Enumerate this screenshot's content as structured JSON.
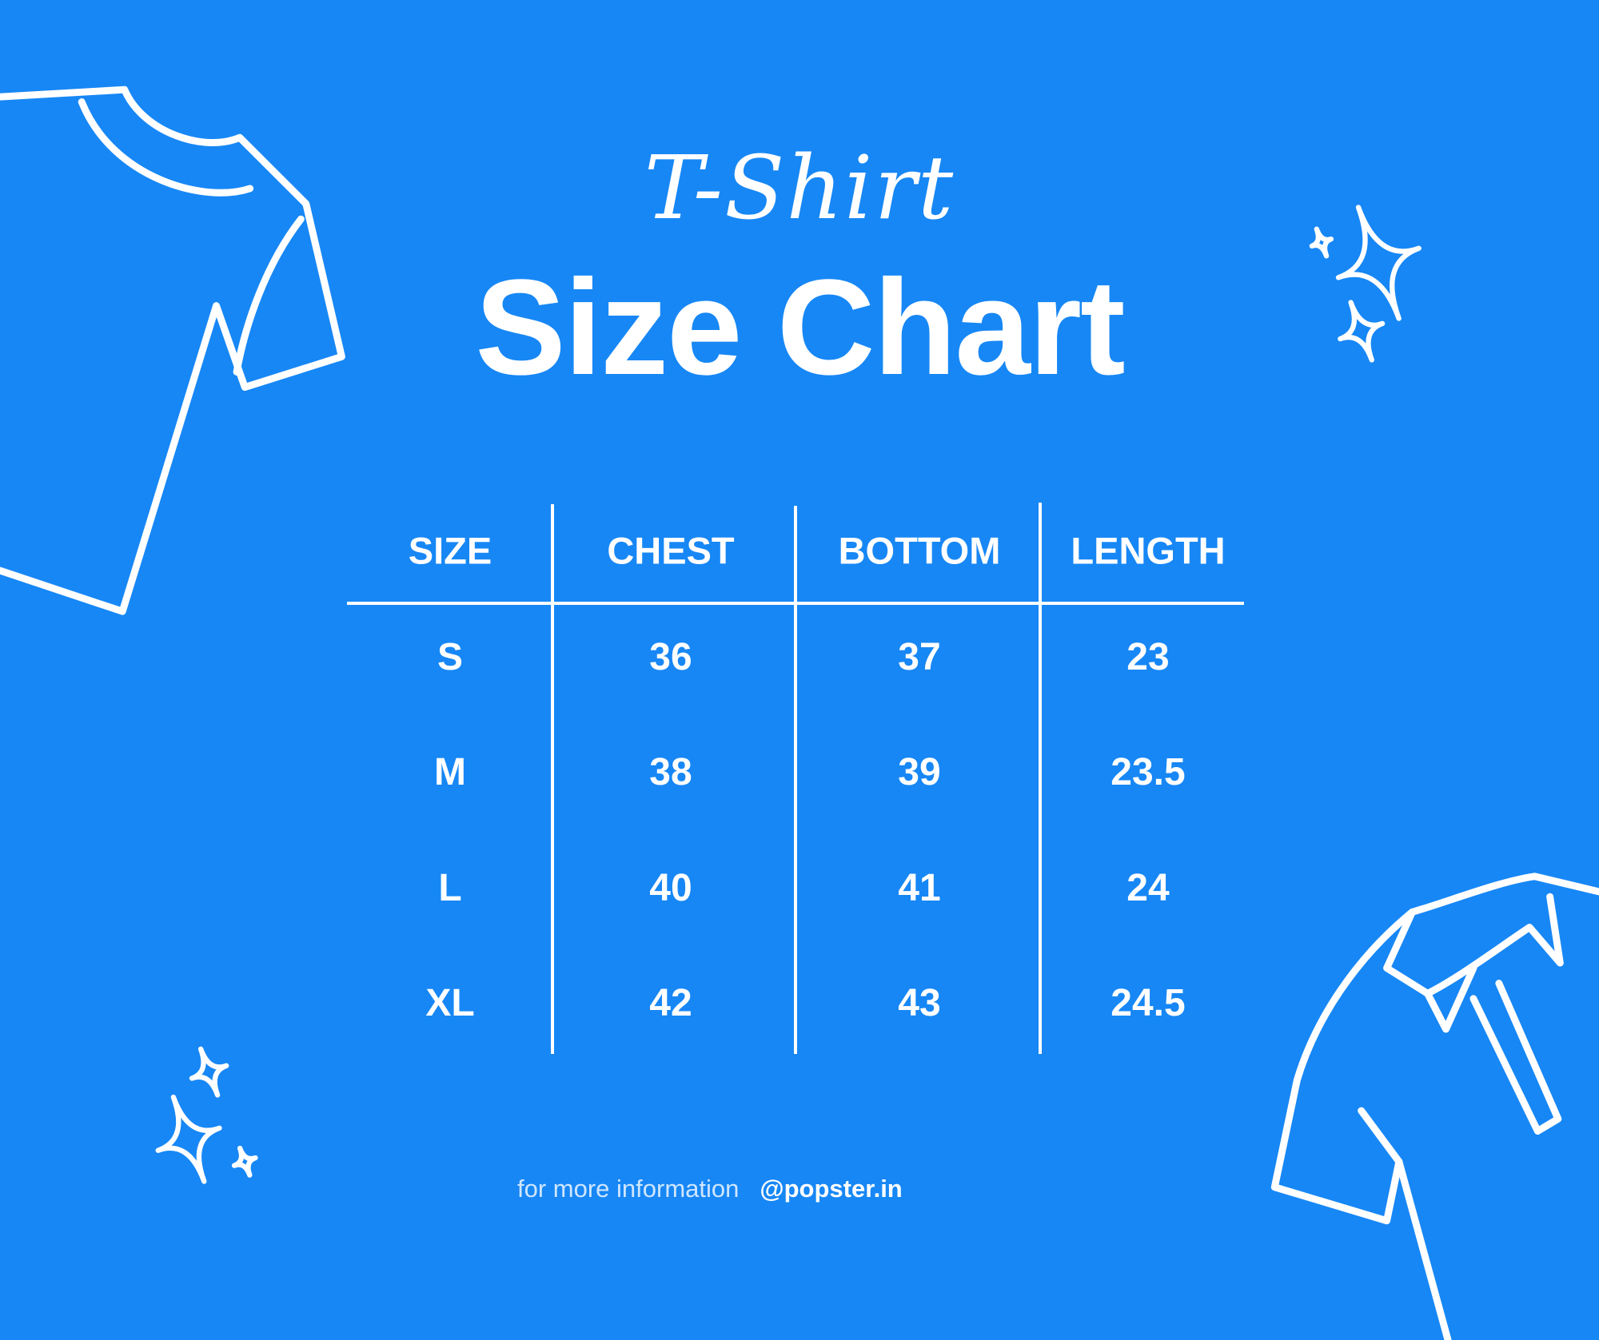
{
  "header": {
    "script_title": "T-Shirt",
    "title": "Size Chart"
  },
  "table": {
    "columns": [
      "SIZE",
      "CHEST",
      "BOTTOM",
      "LENGTH"
    ],
    "rows": [
      [
        "S",
        "36",
        "37",
        "23"
      ],
      [
        "M",
        "38",
        "39",
        "23.5"
      ],
      [
        "L",
        "40",
        "41",
        "24"
      ],
      [
        "XL",
        "42",
        "43",
        "24.5"
      ]
    ]
  },
  "footer": {
    "info_text": "for more information",
    "handle": "@popster.in"
  },
  "colors": {
    "background": "#1787f5",
    "foreground": "#ffffff"
  },
  "decorations": [
    "tshirt-outline-icon",
    "polo-shirt-outline-icon",
    "sparkle-icon"
  ]
}
